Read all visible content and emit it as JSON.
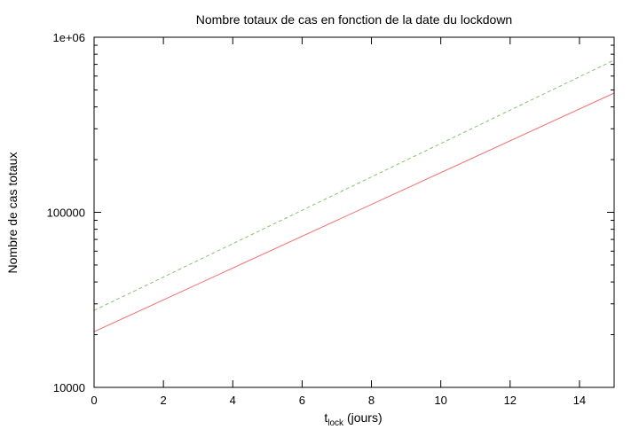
{
  "chart_data": {
    "type": "line",
    "title": "Nombre totaux de cas en fonction de la date du lockdown",
    "xlabel": {
      "main": "t",
      "sub": "lock",
      "rest": " (jours)"
    },
    "ylabel": "Nombre de cas totaux",
    "x_range": [
      0,
      15
    ],
    "y_range": [
      10000,
      1000000
    ],
    "y_scale": "log",
    "grid": false,
    "legend": "none",
    "x_ticks": [
      0,
      2,
      4,
      6,
      8,
      10,
      12,
      14
    ],
    "x_tick_labels": [
      "0",
      "2",
      "4",
      "6",
      "8",
      "10",
      "12",
      "14"
    ],
    "y_ticks": [
      10000,
      100000,
      1000000
    ],
    "y_tick_labels": [
      "10000",
      "100000",
      "1e+06"
    ],
    "series": [
      {
        "color": "#f07070",
        "dash": "solid",
        "x": [
          0,
          15
        ],
        "y": [
          20800,
          480000
        ]
      },
      {
        "color": "#88c070",
        "dash": "dashed",
        "x": [
          0,
          15
        ],
        "y": [
          27500,
          740000
        ]
      }
    ]
  }
}
